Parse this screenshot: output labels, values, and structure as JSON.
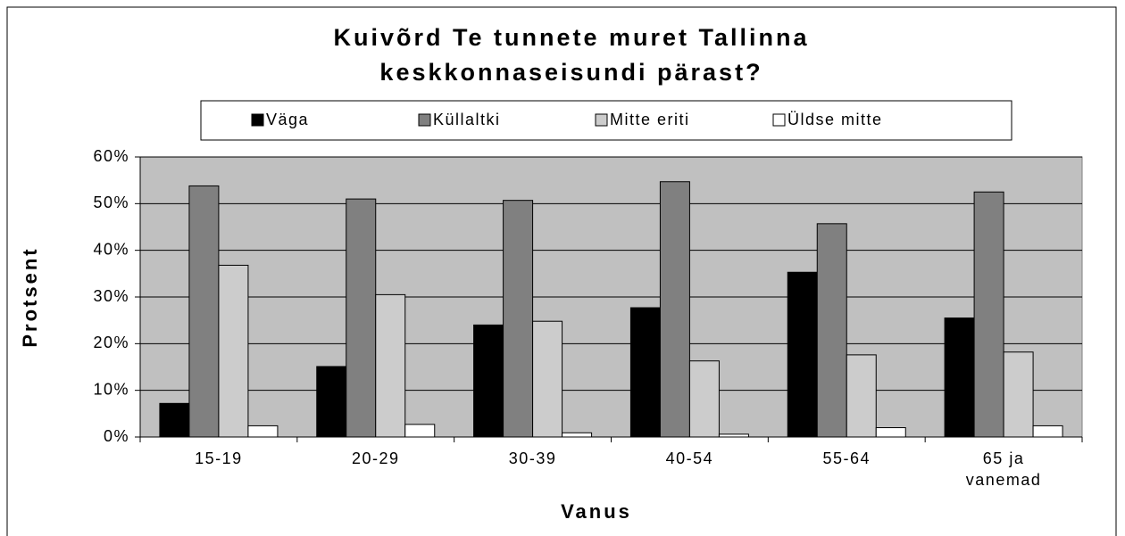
{
  "chart_data": {
    "type": "bar",
    "title": [
      "Kuivõrd Te tunnete muret Tallinna",
      "keskkonnaseisundi pärast?"
    ],
    "x_label": "Vanus",
    "y_label": "Protsent",
    "categories": [
      "15-19",
      "20-29",
      "30-39",
      "40-54",
      "55-64",
      "65 ja vanemad"
    ],
    "series": [
      {
        "name": "Väga",
        "color": "#000000",
        "values": [
          7.2,
          15.1,
          24.0,
          27.7,
          35.3,
          25.5
        ]
      },
      {
        "name": "Küllaltki",
        "color": "#808080",
        "values": [
          53.8,
          51.0,
          50.7,
          54.7,
          45.7,
          52.5
        ]
      },
      {
        "name": "Mitte eriti",
        "color": "#cccccc",
        "values": [
          36.8,
          30.5,
          24.8,
          16.3,
          17.6,
          18.2
        ]
      },
      {
        "name": "Üldse mitte",
        "color": "#ffffff",
        "values": [
          2.4,
          2.7,
          0.9,
          0.6,
          2.0,
          2.4
        ]
      }
    ],
    "ylim": [
      0,
      60
    ],
    "yticks": [
      {
        "value": 0,
        "label": "0%"
      },
      {
        "value": 10,
        "label": "10%"
      },
      {
        "value": 20,
        "label": "20%"
      },
      {
        "value": 30,
        "label": "30%"
      },
      {
        "value": 40,
        "label": "40%"
      },
      {
        "value": 50,
        "label": "50%"
      },
      {
        "value": 60,
        "label": "60%"
      }
    ],
    "grid": true,
    "plot_background": "#c0c0c0",
    "legend": "top"
  }
}
